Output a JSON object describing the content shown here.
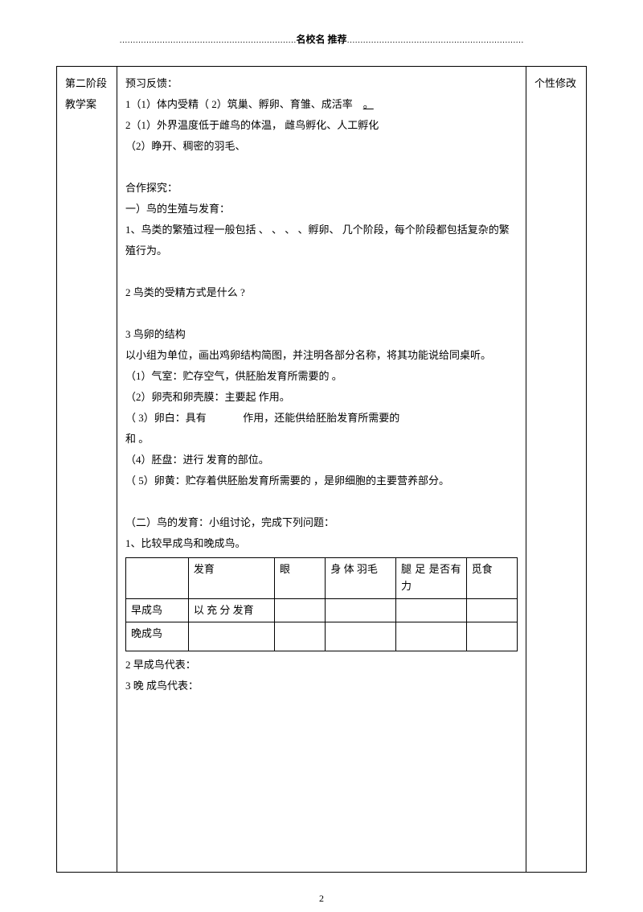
{
  "header": {
    "dots_left": "…………………………………………………………",
    "text": "名校名 推荐",
    "dots_right": "…………………………………………………………"
  },
  "layout": {
    "left_label_line1": "第二阶段",
    "left_label_line2": "教学案",
    "right_label": "个性修改"
  },
  "content": {
    "sec1_title": "预习反馈：",
    "sec1_line1": "1（1）体内受精（ 2）筑巢、孵卵、育雏、成活率",
    "sec1_line1_end": "。",
    "sec1_line2": "2（1）外界温度低于雌鸟的体温， 雌鸟孵化、人工孵化",
    "sec1_line3": "（2）睁开、稠密的羽毛、",
    "sec2_title": "合作探究：",
    "sec2_sub1": "一）鸟的生殖与发育：",
    "sec2_line1": "1、鸟类的繁殖过程一般包括        、      、      、      、孵卵、     几个阶段，每个阶段都包括复杂的繁殖行为。",
    "sec2_line2": "2 鸟类的受精方式是什么 ?",
    "sec2_line3_title": "3 鸟卵的结构",
    "sec2_line3_1": "以小组为单位，画出鸡卵结构简图，并注明各部分名称，将其功能说给同桌听。",
    "sec2_line3_2": "（1）气室：贮存空气，供胚胎发育所需要的                    。",
    "sec2_line3_3": "（2）卵壳和卵壳膜：主要起                     作用。",
    "sec2_line3_4a": "（ 3）卵白：具有",
    "sec2_line3_4b": "作用，还能供给胚胎发育所需要的",
    "sec2_line3_4end": "和           。",
    "sec2_line3_5": "（4）胚盘：进行               发育的部位。",
    "sec2_line3_6": "（ 5）卵黄：贮存着供胚胎发育所需要的                       ，是卵细胞的主要营养部分。",
    "sec3_title": "（二）鸟的发育：小组讨论，完成下列问题：",
    "sec3_line1": "1、比较早成鸟和晚成鸟。",
    "sec3_line2": "2 早成鸟代表：",
    "sec3_line3": "3 晚 成鸟代表：",
    "sec3_line3_sub": "。"
  },
  "inner_table": {
    "h1": "",
    "h2": "发育",
    "h3": "眼",
    "h4": "身 体 羽毛",
    "h5": "腿 足 是否有力",
    "h6": "觅食",
    "r1c1": "早成鸟",
    "r1c2": "以 充 分 发育",
    "r2c1": "晚成鸟"
  },
  "page_number": "2"
}
